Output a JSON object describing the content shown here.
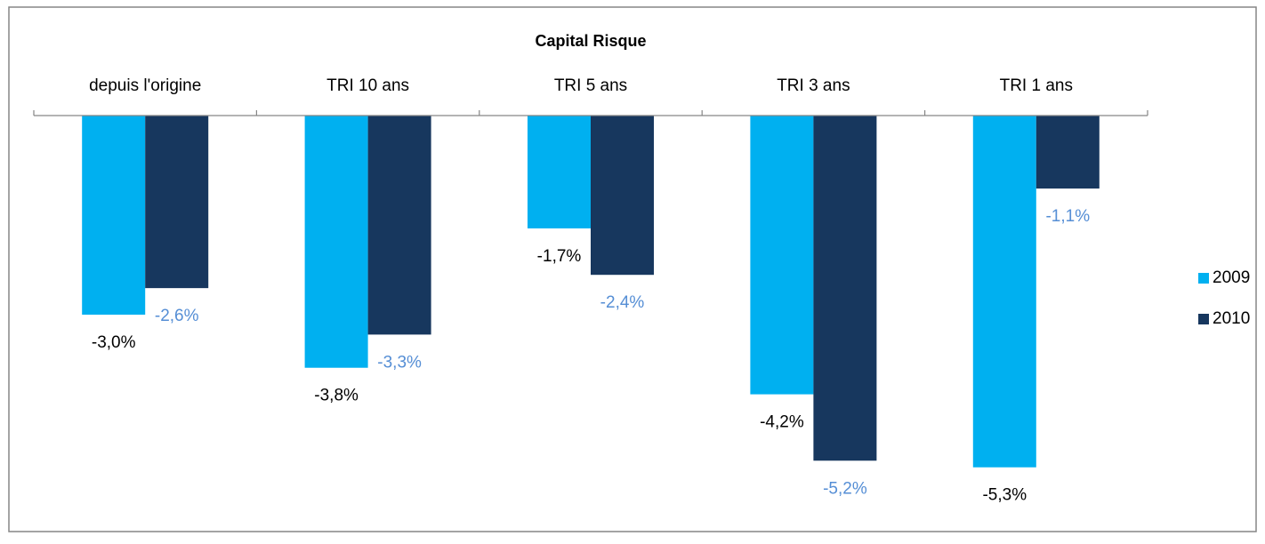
{
  "chart_data": {
    "type": "bar",
    "title": "Capital Risque",
    "categories": [
      "depuis l'origine",
      "TRI 10 ans",
      "TRI 5 ans",
      "TRI 3 ans",
      "TRI 1 ans"
    ],
    "series": [
      {
        "name": "2009",
        "color": "#00b0f0",
        "label_color": "#000000",
        "values": [
          -3.0,
          -3.8,
          -1.7,
          -4.2,
          -5.3
        ],
        "value_labels": [
          "-3,0%",
          "-3,8%",
          "-1,7%",
          "-4,2%",
          "-5,3%"
        ]
      },
      {
        "name": "2010",
        "color": "#17375e",
        "label_color": "#558ed5",
        "values": [
          -2.6,
          -3.3,
          -2.4,
          -5.2,
          -1.1
        ],
        "value_labels": [
          "-2,6%",
          "-3,3%",
          "-2,4%",
          "-5,2%",
          "-1,1%"
        ]
      }
    ],
    "ylim": [
      -6,
      0
    ],
    "legend": "right"
  }
}
